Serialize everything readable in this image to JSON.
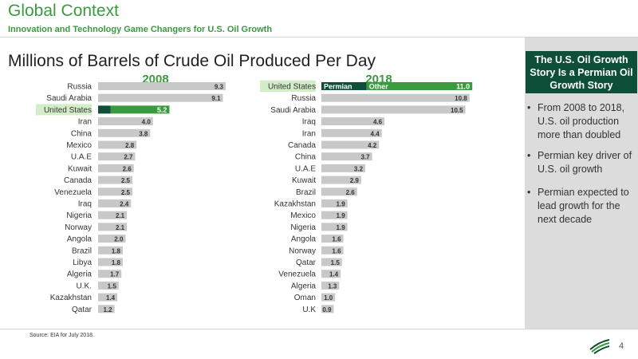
{
  "header": {
    "title": "Global Context",
    "subtitle": "Innovation and Technology Game Changers for U.S. Oil Growth"
  },
  "main_title": "Millions of Barrels of Crude Oil Produced Per Day",
  "sidebar": {
    "heading": "The U.S. Oil Growth Story Is a Permian Oil Growth Story",
    "bullets": [
      "From 2008 to 2018, U.S. oil production more than doubled",
      "Permian key driver of U.S. oil growth",
      "Permian expected to lead growth for the next decade"
    ]
  },
  "footer": {
    "source": "Source: EIA for July 2018.",
    "page_number": "4"
  },
  "colors": {
    "brand_green": "#3a9a3e",
    "dark_green": "#0e4f39",
    "bar_grey": "#c8c8c8",
    "highlight": "#d4edc9"
  },
  "chart_data": [
    {
      "type": "bar",
      "orientation": "horizontal",
      "title": "2008",
      "categories": [
        "Russia",
        "Saudi Arabia",
        "United States",
        "Iran",
        "China",
        "Mexico",
        "U.A.E",
        "Kuwait",
        "Canada",
        "Venezuela",
        "Iraq",
        "Nigeria",
        "Norway",
        "Angola",
        "Brazil",
        "Libya",
        "Algeria",
        "U.K.",
        "Kazakhstan",
        "Qatar"
      ],
      "values": [
        9.3,
        9.1,
        5.2,
        4.0,
        3.8,
        2.8,
        2.7,
        2.6,
        2.5,
        2.5,
        2.4,
        2.1,
        2.1,
        2.0,
        1.8,
        1.8,
        1.7,
        1.5,
        1.4,
        1.2
      ],
      "value_labels": [
        "9.3",
        "9.1",
        "5.2",
        "4.0",
        "3.8",
        "2.8",
        "2.7",
        "2.6",
        "2.5",
        "2.5",
        "2.4",
        "2.1",
        "2.1",
        "2.0",
        "1.8",
        "1.8",
        "1.7",
        "1.5",
        "1.4",
        "1.2"
      ],
      "highlight_category": "United States",
      "stacked": {
        "United States": [
          {
            "name": "",
            "value": 0.9,
            "color": "#0e4f39"
          },
          {
            "name": "",
            "value": 4.3,
            "color": "#3a9a3e"
          }
        ]
      }
    },
    {
      "type": "bar",
      "orientation": "horizontal",
      "title": "2018",
      "categories": [
        "United States",
        "Russia",
        "Saudi Arabia",
        "Iraq",
        "Iran",
        "Canada",
        "China",
        "U.A.E",
        "Kuwait",
        "Brazil",
        "Kazakhstan",
        "Mexico",
        "Nigeria",
        "Angola",
        "Norway",
        "Qatar",
        "Venezuela",
        "Algeria",
        "Oman",
        "U.K"
      ],
      "values": [
        11.0,
        10.8,
        10.5,
        4.6,
        4.4,
        4.2,
        3.7,
        3.2,
        2.9,
        2.6,
        1.9,
        1.9,
        1.9,
        1.6,
        1.6,
        1.5,
        1.4,
        1.3,
        1.0,
        0.9
      ],
      "value_labels": [
        "11.0",
        "10.8",
        "10.5",
        "4.6",
        "4.4",
        "4.2",
        "3.7",
        "3.2",
        "2.9",
        "2.6",
        "1.9",
        "1.9",
        "1.9",
        "1.6",
        "1.6",
        "1.5",
        "1.4",
        "1.3",
        "1.0",
        "0.9"
      ],
      "highlight_category": "United States",
      "stacked": {
        "United States": [
          {
            "name": "Permian",
            "value": 3.3,
            "color": "#0e4f39"
          },
          {
            "name": "Other",
            "value": 7.7,
            "color": "#3a9a3e"
          }
        ]
      }
    }
  ]
}
